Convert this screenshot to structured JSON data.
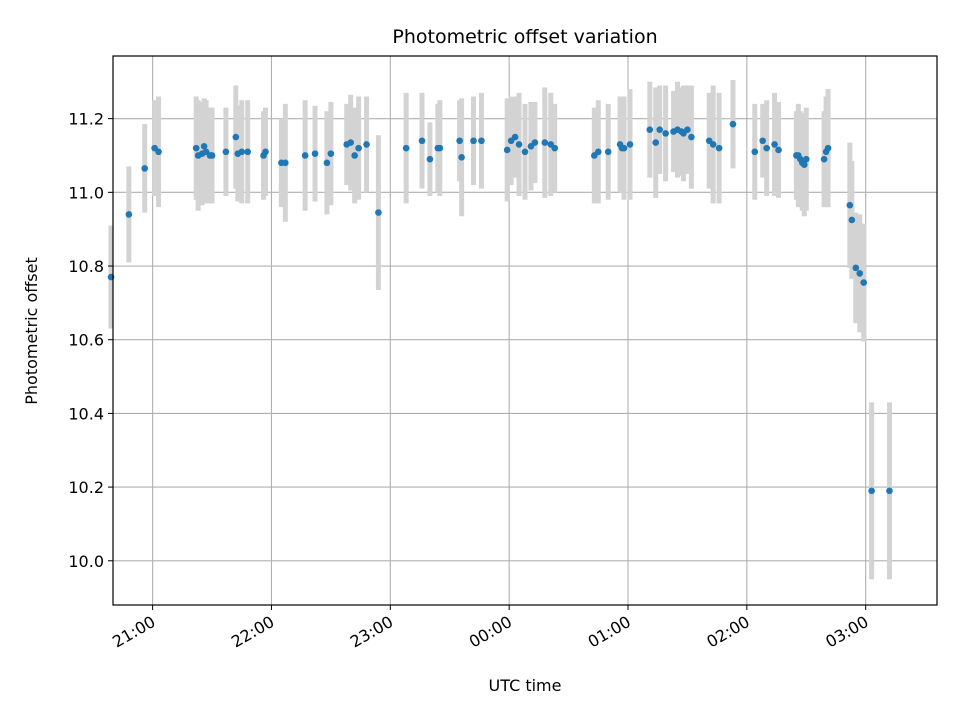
{
  "chart_data": {
    "type": "scatter",
    "title": "Photometric offset variation",
    "xlabel": "UTC time",
    "ylabel": "Photometric offset",
    "x_is_time": true,
    "xlim": [
      "20:40",
      "03:36"
    ],
    "ylim": [
      9.88,
      11.37
    ],
    "x_ticks": [
      "21:00",
      "22:00",
      "23:00",
      "00:00",
      "01:00",
      "02:00",
      "03:00"
    ],
    "y_ticks": [
      10.0,
      10.2,
      10.4,
      10.6,
      10.8,
      11.0,
      11.2
    ],
    "y_tick_labels": [
      "10.0",
      "10.2",
      "10.4",
      "10.6",
      "10.8",
      "11.0",
      "11.2"
    ],
    "grid": true,
    "colors": {
      "point": "#1f77b4",
      "errorbar": "#d3d3d3",
      "grid": "#b0b0b0"
    },
    "series": [
      {
        "marker": "point-with-errorbar",
        "x": [
          "20:39",
          "20:48",
          "20:56",
          "21:01",
          "21:03",
          "21:22",
          "21:23",
          "21:25",
          "21:26",
          "21:27",
          "21:29",
          "21:30",
          "21:37",
          "21:42",
          "21:43",
          "21:45",
          "21:48",
          "21:56",
          "21:57",
          "22:05",
          "22:07",
          "22:17",
          "22:22",
          "22:28",
          "22:30",
          "22:38",
          "22:40",
          "22:42",
          "22:44",
          "22:48",
          "22:54",
          "23:08",
          "23:16",
          "23:20",
          "23:24",
          "23:25",
          "23:35",
          "23:36",
          "23:42",
          "23:46",
          "23:59",
          "24:01",
          "24:03",
          "24:05",
          "24:08",
          "24:11",
          "24:13",
          "24:18",
          "24:21",
          "24:23",
          "24:43",
          "24:45",
          "24:50",
          "24:56",
          "24:57",
          "24:58",
          "25:01",
          "25:11",
          "25:14",
          "25:16",
          "25:19",
          "25:23",
          "25:25",
          "25:27",
          "25:28",
          "25:30",
          "25:32",
          "25:41",
          "25:43",
          "25:46",
          "25:53",
          "26:04",
          "26:08",
          "26:10",
          "26:14",
          "26:16",
          "26:25",
          "26:26",
          "26:27",
          "26:28",
          "26:29",
          "26:30",
          "26:39",
          "26:40",
          "26:41",
          "26:52",
          "26:53",
          "26:55",
          "26:57",
          "26:59",
          "27:03",
          "27:12"
        ],
        "y": [
          10.77,
          10.94,
          11.065,
          11.12,
          11.11,
          11.12,
          11.1,
          11.105,
          11.125,
          11.11,
          11.1,
          11.1,
          11.11,
          11.15,
          11.105,
          11.11,
          11.11,
          11.1,
          11.11,
          11.08,
          11.08,
          11.1,
          11.105,
          11.08,
          11.105,
          11.13,
          11.135,
          11.1,
          11.12,
          11.13,
          10.945,
          11.12,
          11.14,
          11.09,
          11.12,
          11.12,
          11.14,
          11.095,
          11.14,
          11.14,
          11.115,
          11.14,
          11.15,
          11.13,
          11.11,
          11.125,
          11.135,
          11.135,
          11.13,
          11.12,
          11.1,
          11.11,
          11.11,
          11.13,
          11.12,
          11.12,
          11.13,
          11.17,
          11.135,
          11.17,
          11.16,
          11.165,
          11.17,
          11.165,
          11.16,
          11.17,
          11.15,
          11.14,
          11.13,
          11.12,
          11.185,
          11.11,
          11.14,
          11.12,
          11.13,
          11.115,
          11.1,
          11.1,
          11.09,
          11.08,
          11.075,
          11.09,
          11.09,
          11.11,
          11.12,
          10.965,
          10.925,
          10.795,
          10.78,
          10.755,
          10.19,
          10.19
        ],
        "yerr": [
          0.14,
          0.13,
          0.12,
          0.13,
          0.15,
          0.14,
          0.15,
          0.14,
          0.13,
          0.14,
          0.13,
          0.13,
          0.12,
          0.14,
          0.13,
          0.14,
          0.14,
          0.12,
          0.12,
          0.12,
          0.16,
          0.15,
          0.13,
          0.14,
          0.14,
          0.11,
          0.13,
          0.13,
          0.14,
          0.13,
          0.21,
          0.15,
          0.13,
          0.1,
          0.12,
          0.13,
          0.11,
          0.16,
          0.12,
          0.13,
          0.14,
          0.12,
          0.11,
          0.14,
          0.13,
          0.12,
          0.11,
          0.15,
          0.14,
          0.12,
          0.13,
          0.14,
          0.13,
          0.13,
          0.12,
          0.14,
          0.15,
          0.13,
          0.15,
          0.12,
          0.13,
          0.11,
          0.13,
          0.12,
          0.13,
          0.12,
          0.14,
          0.13,
          0.16,
          0.15,
          0.12,
          0.13,
          0.1,
          0.13,
          0.14,
          0.13,
          0.12,
          0.14,
          0.13,
          0.13,
          0.14,
          0.14,
          0.13,
          0.15,
          0.16,
          0.17,
          0.16,
          0.15,
          0.16,
          0.16,
          0.24,
          0.24
        ]
      }
    ]
  }
}
